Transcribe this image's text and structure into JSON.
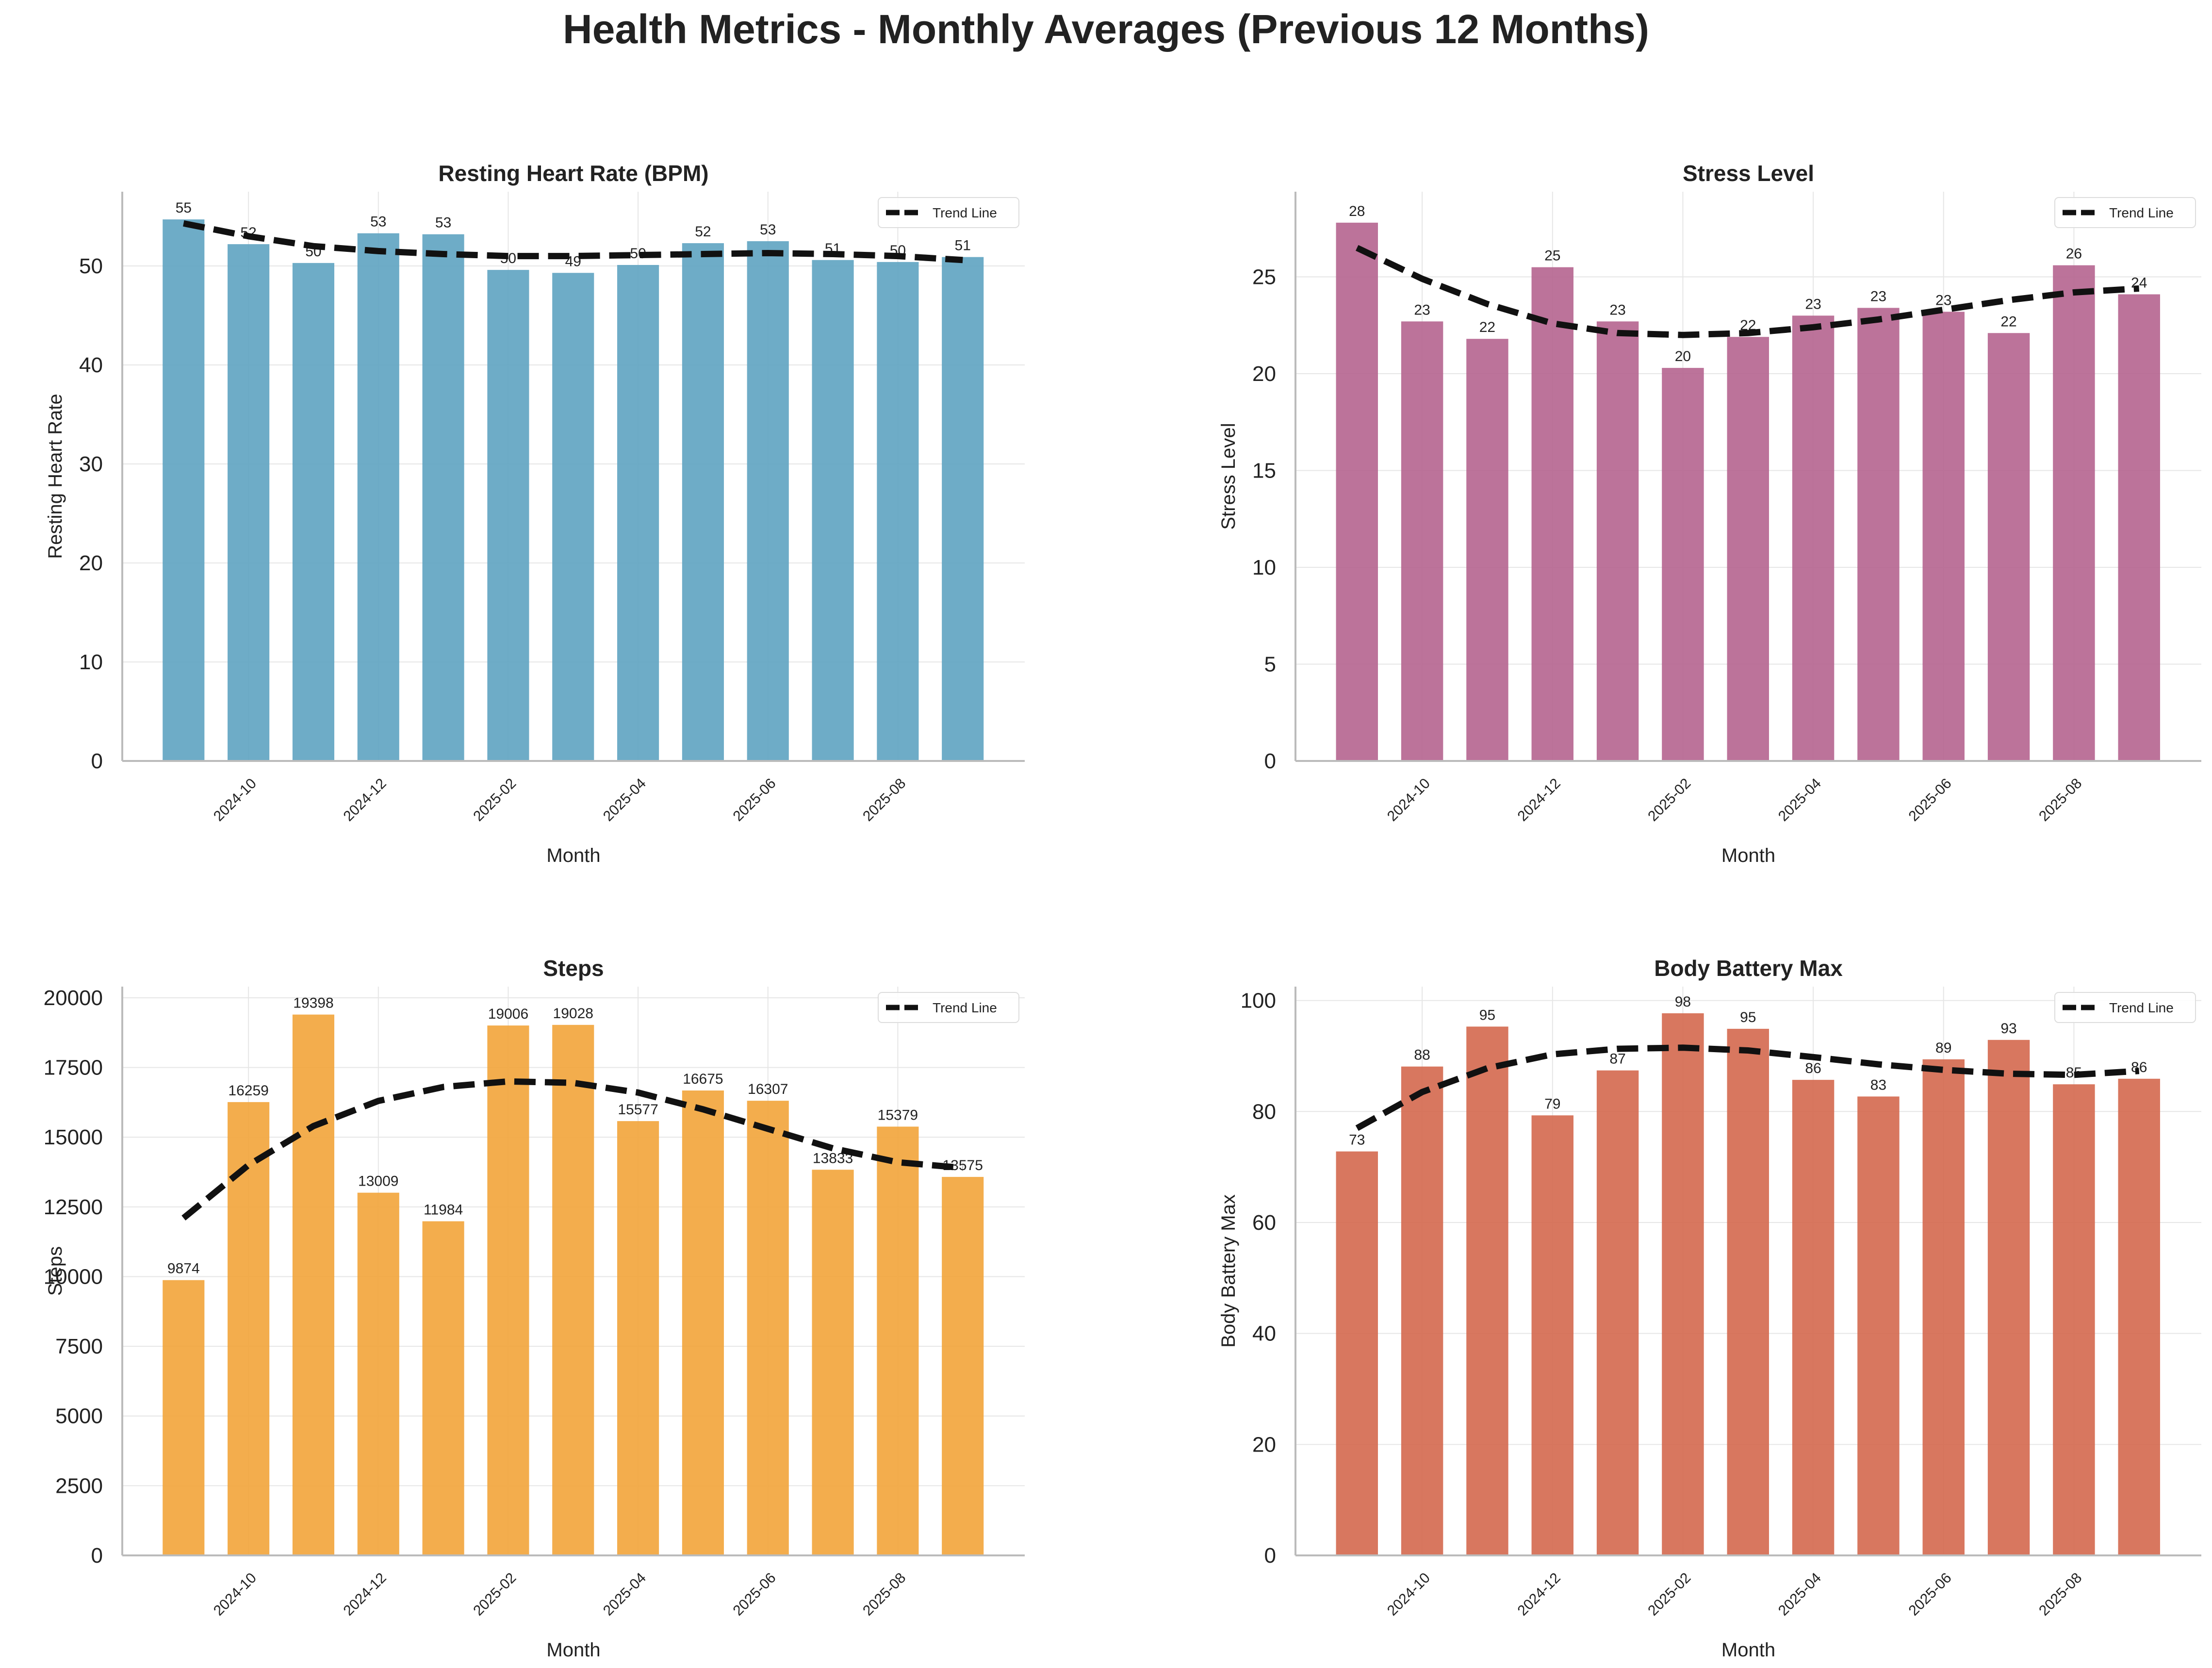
{
  "title": "Health Metrics - Monthly Averages (Previous 12 Months)",
  "chart_data": [
    {
      "type": "bar",
      "title": "Resting Heart Rate (BPM)",
      "xlabel": "Month",
      "ylabel": "Resting Heart Rate",
      "color": "#5ea3c1",
      "x_tick_labels": [
        "2024-10",
        "2024-12",
        "2025-02",
        "2025-04",
        "2025-06",
        "2025-08"
      ],
      "yticks": [
        0,
        10,
        20,
        30,
        40,
        50
      ],
      "ylim": [
        0,
        57.5
      ],
      "values": [
        54.7,
        52.2,
        50.3,
        53.3,
        53.2,
        49.6,
        49.3,
        50.1,
        52.3,
        52.5,
        50.6,
        50.4,
        50.9
      ],
      "value_labels": [
        "55",
        "52",
        "50",
        "53",
        "53",
        "50",
        "49",
        "50",
        "52",
        "53",
        "51",
        "50",
        "51"
      ],
      "trend": [
        54.3,
        53.0,
        52.0,
        51.5,
        51.2,
        51.0,
        51.0,
        51.1,
        51.2,
        51.3,
        51.2,
        51.0,
        50.6
      ],
      "legend": "Trend Line",
      "grid": true,
      "legend_position": "upper right"
    },
    {
      "type": "bar",
      "title": "Stress Level",
      "xlabel": "Month",
      "ylabel": "Stress Level",
      "color": "#b5648f",
      "x_tick_labels": [
        "2024-10",
        "2024-12",
        "2025-02",
        "2025-04",
        "2025-06",
        "2025-08"
      ],
      "yticks": [
        0,
        5,
        10,
        15,
        20,
        25
      ],
      "ylim": [
        0,
        29.4
      ],
      "values": [
        27.8,
        22.7,
        21.8,
        25.5,
        22.7,
        20.3,
        21.9,
        23.0,
        23.4,
        23.2,
        22.1,
        25.6,
        24.1
      ],
      "value_labels": [
        "28",
        "23",
        "22",
        "25",
        "23",
        "20",
        "22",
        "23",
        "23",
        "23",
        "22",
        "26",
        "24"
      ],
      "trend": [
        26.5,
        24.9,
        23.6,
        22.6,
        22.1,
        22.0,
        22.1,
        22.4,
        22.8,
        23.3,
        23.8,
        24.2,
        24.4
      ],
      "legend": "Trend Line",
      "grid": true,
      "legend_position": "upper right"
    },
    {
      "type": "bar",
      "title": "Steps",
      "xlabel": "Month",
      "ylabel": "Steps",
      "color": "#f2a43a",
      "x_tick_labels": [
        "2024-10",
        "2024-12",
        "2025-02",
        "2025-04",
        "2025-06",
        "2025-08"
      ],
      "yticks": [
        0,
        2500,
        5000,
        7500,
        10000,
        12500,
        15000,
        17500,
        20000
      ],
      "ylim": [
        0,
        20400
      ],
      "values": [
        9874,
        16259,
        19398,
        13009,
        11984,
        19006,
        19028,
        15577,
        16675,
        16307,
        13833,
        15379,
        13575
      ],
      "value_labels": [
        "9874",
        "16259",
        "19398",
        "13009",
        "11984",
        "19006",
        "19028",
        "15577",
        "16675",
        "16307",
        "13833",
        "15379",
        "13575"
      ],
      "trend": [
        12100,
        14000,
        15400,
        16300,
        16800,
        17000,
        16950,
        16600,
        16000,
        15300,
        14600,
        14100,
        13900
      ],
      "legend": "Trend Line",
      "grid": true,
      "legend_position": "upper right"
    },
    {
      "type": "bar",
      "title": "Body Battery Max",
      "xlabel": "Month",
      "ylabel": "Body Battery Max",
      "color": "#d4684e",
      "x_tick_labels": [
        "2024-10",
        "2024-12",
        "2025-02",
        "2025-04",
        "2025-06",
        "2025-08"
      ],
      "yticks": [
        0,
        20,
        40,
        60,
        80,
        100
      ],
      "ylim": [
        0,
        102.5
      ],
      "values": [
        72.8,
        88.1,
        95.3,
        79.3,
        87.4,
        97.7,
        94.9,
        85.7,
        82.7,
        89.4,
        92.9,
        84.9,
        85.9
      ],
      "value_labels": [
        "73",
        "88",
        "95",
        "79",
        "87",
        "98",
        "95",
        "86",
        "83",
        "89",
        "93",
        "85",
        "86"
      ],
      "trend": [
        77.0,
        83.5,
        87.8,
        90.3,
        91.3,
        91.5,
        91.0,
        89.8,
        88.5,
        87.5,
        86.8,
        86.6,
        87.3
      ],
      "legend": "Trend Line",
      "grid": true,
      "legend_position": "upper right"
    }
  ]
}
